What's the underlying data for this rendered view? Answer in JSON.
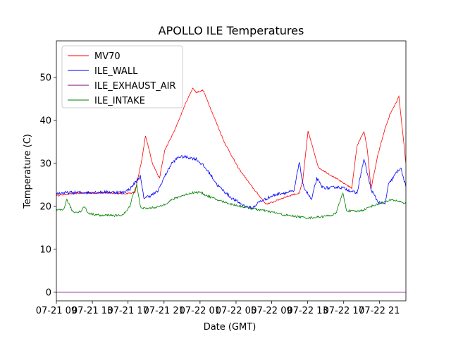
{
  "chart_data": {
    "type": "line",
    "title": "APOLLO ILE Temperatures",
    "xlabel": "Date (GMT)",
    "ylabel": "Temperature (C)",
    "xlim": [
      0,
      100
    ],
    "ylim": [
      -2,
      58.5
    ],
    "y_ticks": [
      0,
      10,
      20,
      30,
      40,
      50
    ],
    "x_ticks": [
      {
        "x": 0,
        "label": "07-21 09"
      },
      {
        "x": 10.3,
        "label": "07-21 13"
      },
      {
        "x": 20.5,
        "label": "07-21 17"
      },
      {
        "x": 30.8,
        "label": "07-21 21"
      },
      {
        "x": 41.1,
        "label": "07-22 01"
      },
      {
        "x": 51.4,
        "label": "07-22 05"
      },
      {
        "x": 61.6,
        "label": "07-22 09"
      },
      {
        "x": 71.9,
        "label": "07-22 13"
      },
      {
        "x": 82.2,
        "label": "07-22 17"
      },
      {
        "x": 92.4,
        "label": "07-22 21"
      }
    ],
    "legend_position": "top-left",
    "series": [
      {
        "name": "MV70",
        "color": "#ff0000",
        "x": [
          0,
          4,
          8,
          12,
          16,
          19,
          22.5,
          24.5,
          25.5,
          27.5,
          29.5,
          31,
          34,
          37,
          39,
          40,
          42,
          45,
          48,
          52,
          56,
          60,
          62,
          65,
          66.5,
          68,
          69.5,
          70.5,
          72,
          75,
          78,
          81,
          81.5,
          83,
          84.5,
          86,
          88,
          89,
          90,
          92,
          94,
          95.5,
          96.5,
          98,
          100
        ],
        "y": [
          22.5,
          22.9,
          23.1,
          23.1,
          23.1,
          22.9,
          23.2,
          31,
          36.5,
          30,
          26.5,
          33,
          38,
          44,
          47.5,
          46.5,
          47,
          41,
          35,
          29,
          24.5,
          20.5,
          21,
          22,
          22.4,
          22.8,
          23,
          26,
          37.5,
          29,
          27.5,
          26,
          25.7,
          25,
          24.2,
          34,
          37.5,
          33,
          24,
          32,
          38,
          41.5,
          43,
          45.5,
          30
        ]
      },
      {
        "name": "ILE_WALL",
        "color": "#0000ff",
        "x": [
          0,
          4,
          8,
          12,
          16,
          19,
          21,
          22,
          23,
          24,
          25,
          27,
          29,
          31,
          33,
          35,
          37,
          40,
          42,
          44,
          46,
          50,
          54,
          56,
          58,
          62,
          64,
          66,
          68,
          69.5,
          70.5,
          71.5,
          73,
          74.5,
          76,
          78,
          80,
          82,
          86,
          88,
          90,
          92,
          94,
          95,
          97,
          98.5,
          100
        ],
        "y": [
          23,
          23.2,
          23.2,
          23.3,
          23.3,
          23.2,
          24,
          25,
          26,
          27,
          22,
          22.5,
          23.5,
          27,
          30,
          31.5,
          31.5,
          31,
          29.5,
          27.5,
          25,
          22,
          20,
          19.5,
          21,
          22.5,
          23,
          23.2,
          23.5,
          30.5,
          25,
          23.5,
          21.5,
          26.5,
          24.5,
          24.2,
          24.5,
          24.3,
          23,
          31,
          24,
          21,
          20.5,
          25,
          27.5,
          29,
          24.5
        ]
      },
      {
        "name": "ILE_EXHAUST_AIR",
        "color": "#800080",
        "x": [
          0,
          100
        ],
        "y": [
          0,
          0
        ]
      },
      {
        "name": "ILE_INTAKE",
        "color": "#008000",
        "x": [
          0,
          2,
          3,
          4.5,
          5,
          7,
          8,
          9,
          10,
          12,
          13,
          15,
          17,
          19,
          20,
          21,
          22,
          23,
          24,
          25,
          26,
          30,
          33,
          36,
          39,
          41,
          43,
          46,
          50,
          54,
          56,
          58,
          62,
          64,
          65,
          66,
          68,
          70,
          72,
          75,
          77,
          79,
          80,
          81,
          82,
          83,
          86,
          88,
          90,
          92,
          94,
          96,
          98,
          100
        ],
        "y": [
          19,
          19.2,
          21.5,
          19,
          18.6,
          18.8,
          20,
          18.5,
          18.2,
          18,
          17.8,
          18,
          17.8,
          18,
          18.8,
          20,
          23,
          25,
          20,
          19.5,
          19.5,
          20,
          21.5,
          22.5,
          23.2,
          23.3,
          22.5,
          21.5,
          20.5,
          19.8,
          19.5,
          19.2,
          18.6,
          18.2,
          18,
          17.9,
          17.7,
          17.5,
          17.3,
          17.5,
          17.7,
          18,
          18.3,
          21,
          23,
          19,
          18.8,
          19.2,
          20,
          20.5,
          21,
          21.5,
          21.2,
          20.6
        ]
      }
    ]
  }
}
